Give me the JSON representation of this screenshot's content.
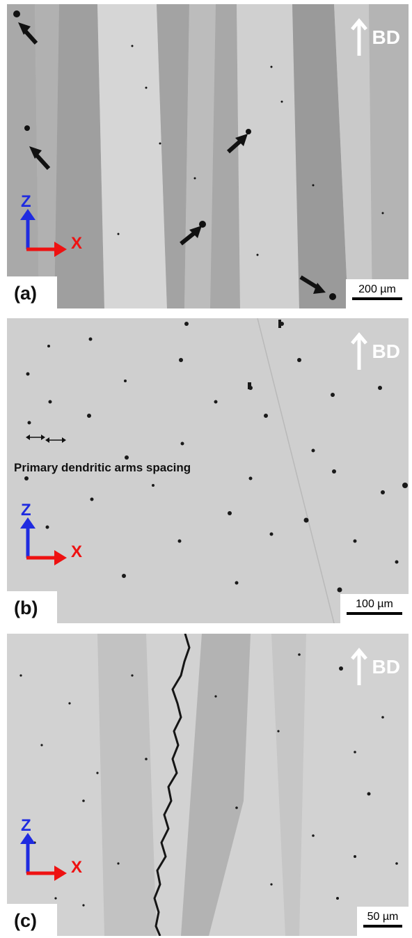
{
  "panels": [
    {
      "label": "(a)",
      "scale": "200 µm",
      "direction": "BD",
      "axis_vertical": "Z",
      "axis_horizontal": "X"
    },
    {
      "label": "(b)",
      "scale": "100 µm",
      "direction": "BD",
      "axis_vertical": "Z",
      "axis_horizontal": "X",
      "annotation": "Primary dendritic arms spacing"
    },
    {
      "label": "(c)",
      "scale": "50 µm",
      "direction": "BD",
      "axis_vertical": "Z",
      "axis_horizontal": "X"
    }
  ],
  "colors": {
    "z_axis": "#1f2be0",
    "x_axis": "#ee1111",
    "bd_arrow": "#ffffff"
  }
}
